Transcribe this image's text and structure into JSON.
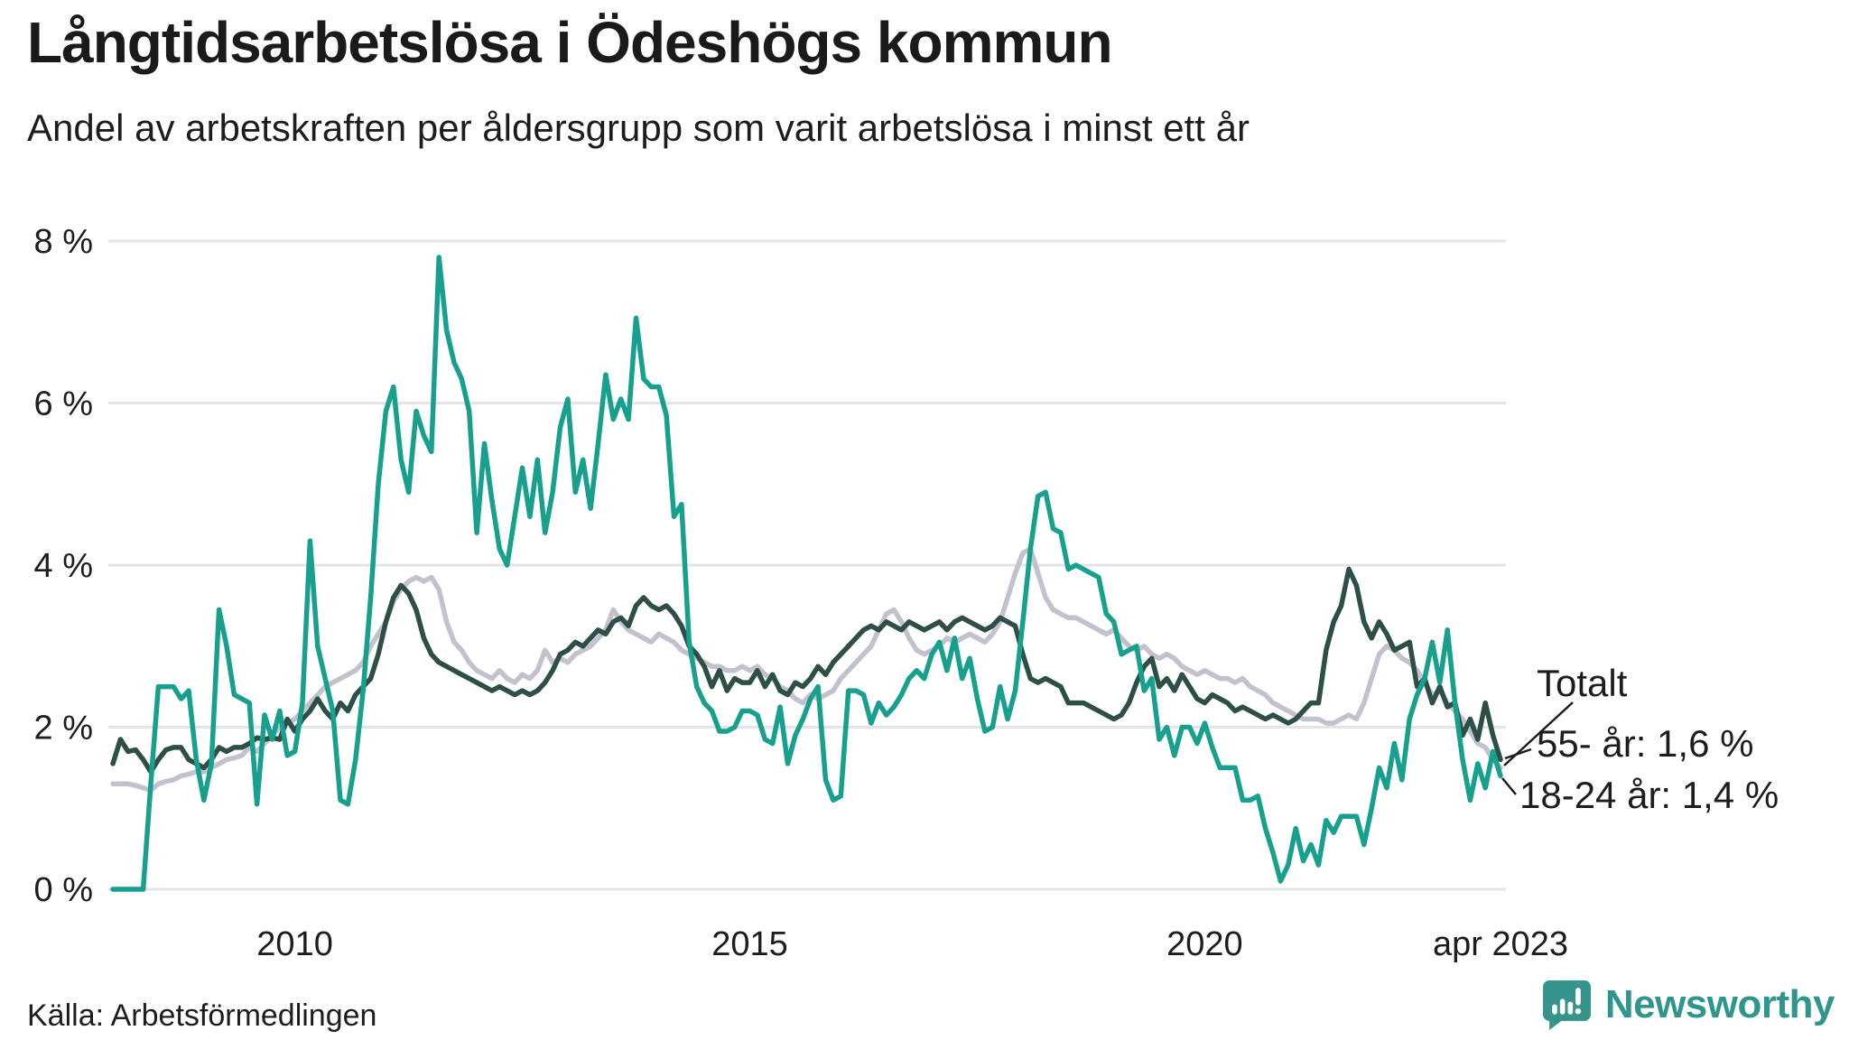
{
  "header": {
    "title": "Långtidsarbetslösa i Ödeshögs kommun",
    "subtitle": "Andel av arbetskraften per åldersgrupp som varit arbetslösa i minst ett år"
  },
  "footer": {
    "source": "Källa: Arbetsförmedlingen",
    "brand": "Newsworthy"
  },
  "colors": {
    "background": "#ffffff",
    "text": "#1d1d1d",
    "grid": "#e4e4e8",
    "brand_teal": "#2f968d",
    "series_total": "#c2c1cd",
    "series_55": "#2d4f47",
    "series_18_24": "#18a08e"
  },
  "chart_data": {
    "type": "line",
    "title": "Långtidsarbetslösa i Ödeshögs kommun",
    "subtitle": "Andel av arbetskraften per åldersgrupp som varit arbetslösa i minst ett år",
    "x_start": "2008-01",
    "x_end": "2023-04",
    "x_interval": "monthly",
    "ylim": [
      0,
      8
    ],
    "grid": true,
    "legend_position": "end-labels-right",
    "yticks": [
      {
        "value": 0,
        "label": "0 %"
      },
      {
        "value": 2,
        "label": "2 %"
      },
      {
        "value": 4,
        "label": "4 %"
      },
      {
        "value": 6,
        "label": "6 %"
      },
      {
        "value": 8,
        "label": "8 %"
      }
    ],
    "xticks": [
      {
        "label": "2010",
        "month_index": 24
      },
      {
        "label": "2015",
        "month_index": 84
      },
      {
        "label": "2020",
        "month_index": 144
      },
      {
        "label": "apr 2023",
        "month_index": 183
      }
    ],
    "series": [
      {
        "name": "Totalt",
        "end_label": "Totalt",
        "end_value": null,
        "color": "#c2c1cd",
        "values": [
          1.3,
          1.3,
          1.3,
          1.28,
          1.25,
          1.22,
          1.3,
          1.33,
          1.35,
          1.4,
          1.42,
          1.45,
          1.45,
          1.5,
          1.55,
          1.6,
          1.62,
          1.65,
          1.75,
          1.7,
          1.8,
          1.9,
          2.0,
          2.05,
          2.1,
          2.2,
          2.3,
          2.4,
          2.5,
          2.55,
          2.6,
          2.65,
          2.7,
          2.8,
          3.0,
          3.15,
          3.3,
          3.55,
          3.7,
          3.8,
          3.85,
          3.8,
          3.85,
          3.7,
          3.3,
          3.05,
          2.95,
          2.8,
          2.7,
          2.65,
          2.6,
          2.7,
          2.6,
          2.55,
          2.65,
          2.6,
          2.7,
          2.95,
          2.8,
          2.85,
          2.8,
          2.9,
          2.95,
          3.0,
          3.1,
          3.2,
          3.45,
          3.3,
          3.2,
          3.15,
          3.1,
          3.05,
          3.15,
          3.1,
          3.05,
          2.95,
          2.9,
          2.85,
          2.8,
          2.75,
          2.75,
          2.7,
          2.7,
          2.75,
          2.7,
          2.75,
          2.65,
          2.6,
          2.5,
          2.45,
          2.35,
          2.3,
          2.4,
          2.35,
          2.4,
          2.45,
          2.6,
          2.7,
          2.8,
          2.9,
          3.0,
          3.2,
          3.4,
          3.45,
          3.3,
          3.1,
          2.95,
          2.9,
          2.95,
          3.0,
          3.1,
          3.05,
          3.1,
          3.15,
          3.1,
          3.05,
          3.15,
          3.3,
          3.6,
          3.9,
          4.15,
          4.2,
          3.9,
          3.6,
          3.45,
          3.4,
          3.35,
          3.35,
          3.3,
          3.25,
          3.2,
          3.15,
          3.2,
          3.1,
          3.0,
          2.95,
          3.0,
          2.9,
          2.85,
          2.9,
          2.85,
          2.75,
          2.7,
          2.65,
          2.7,
          2.65,
          2.6,
          2.6,
          2.55,
          2.6,
          2.5,
          2.45,
          2.4,
          2.3,
          2.25,
          2.2,
          2.15,
          2.1,
          2.1,
          2.1,
          2.05,
          2.05,
          2.1,
          2.15,
          2.1,
          2.3,
          2.6,
          2.9,
          3.0,
          2.95,
          2.85,
          2.8,
          2.7,
          2.55,
          2.4,
          2.45,
          2.3,
          2.2,
          2.1,
          1.95,
          1.8,
          1.75,
          1.6,
          1.5
        ]
      },
      {
        "name": "55- år",
        "end_label": "55- år: 1,6 %",
        "end_value": 1.6,
        "color": "#2d4f47",
        "values": [
          1.55,
          1.85,
          1.7,
          1.72,
          1.6,
          1.45,
          1.6,
          1.72,
          1.75,
          1.75,
          1.6,
          1.55,
          1.5,
          1.6,
          1.75,
          1.7,
          1.75,
          1.75,
          1.8,
          1.87,
          1.85,
          1.87,
          1.85,
          2.1,
          1.95,
          2.1,
          2.2,
          2.35,
          2.2,
          2.1,
          2.3,
          2.2,
          2.4,
          2.5,
          2.6,
          2.9,
          3.3,
          3.6,
          3.75,
          3.65,
          3.45,
          3.1,
          2.9,
          2.8,
          2.75,
          2.7,
          2.65,
          2.6,
          2.55,
          2.5,
          2.45,
          2.5,
          2.45,
          2.4,
          2.45,
          2.4,
          2.45,
          2.55,
          2.7,
          2.9,
          2.95,
          3.05,
          3.0,
          3.1,
          3.2,
          3.15,
          3.3,
          3.35,
          3.25,
          3.5,
          3.6,
          3.5,
          3.45,
          3.5,
          3.4,
          3.25,
          3.0,
          2.9,
          2.75,
          2.5,
          2.7,
          2.45,
          2.6,
          2.55,
          2.55,
          2.7,
          2.5,
          2.65,
          2.45,
          2.4,
          2.55,
          2.5,
          2.6,
          2.75,
          2.65,
          2.8,
          2.9,
          3.0,
          3.1,
          3.2,
          3.25,
          3.2,
          3.3,
          3.25,
          3.2,
          3.3,
          3.25,
          3.2,
          3.25,
          3.3,
          3.2,
          3.3,
          3.35,
          3.3,
          3.25,
          3.2,
          3.25,
          3.35,
          3.3,
          3.25,
          2.9,
          2.6,
          2.55,
          2.6,
          2.55,
          2.5,
          2.3,
          2.3,
          2.3,
          2.25,
          2.2,
          2.15,
          2.1,
          2.15,
          2.3,
          2.55,
          2.75,
          2.85,
          2.5,
          2.6,
          2.45,
          2.65,
          2.5,
          2.35,
          2.3,
          2.4,
          2.35,
          2.3,
          2.2,
          2.25,
          2.2,
          2.15,
          2.1,
          2.15,
          2.1,
          2.05,
          2.1,
          2.2,
          2.3,
          2.3,
          2.95,
          3.3,
          3.5,
          3.95,
          3.75,
          3.3,
          3.1,
          3.3,
          3.15,
          2.95,
          3.0,
          3.05,
          2.5,
          2.6,
          2.3,
          2.5,
          2.25,
          2.3,
          1.9,
          2.1,
          1.85,
          2.3,
          1.9,
          1.6
        ]
      },
      {
        "name": "18-24 år",
        "end_label": "18-24 år: 1,4 %",
        "end_value": 1.4,
        "color": "#18a08e",
        "values": [
          0.0,
          0.0,
          0.0,
          0.0,
          0.0,
          1.3,
          2.5,
          2.5,
          2.5,
          2.35,
          2.45,
          1.6,
          1.1,
          1.55,
          3.45,
          3.0,
          2.4,
          2.35,
          2.3,
          1.05,
          2.15,
          1.85,
          2.2,
          1.65,
          1.7,
          2.3,
          4.3,
          3.0,
          2.6,
          2.2,
          1.1,
          1.05,
          1.6,
          2.45,
          3.6,
          5.0,
          5.9,
          6.2,
          5.3,
          4.9,
          5.9,
          5.6,
          5.4,
          7.8,
          6.9,
          6.5,
          6.3,
          5.9,
          4.4,
          5.5,
          4.8,
          4.2,
          4.0,
          4.6,
          5.2,
          4.6,
          5.3,
          4.4,
          4.9,
          5.7,
          6.05,
          4.9,
          5.3,
          4.7,
          5.5,
          6.35,
          5.8,
          6.05,
          5.8,
          7.05,
          6.3,
          6.2,
          6.2,
          5.85,
          4.6,
          4.75,
          3.05,
          2.5,
          2.3,
          2.2,
          1.95,
          1.95,
          2.0,
          2.2,
          2.2,
          2.15,
          1.85,
          1.8,
          2.25,
          1.55,
          1.9,
          2.1,
          2.35,
          2.5,
          1.35,
          1.1,
          1.15,
          2.45,
          2.45,
          2.4,
          2.05,
          2.3,
          2.15,
          2.25,
          2.4,
          2.6,
          2.7,
          2.6,
          2.9,
          3.05,
          2.7,
          3.1,
          2.6,
          2.85,
          2.35,
          1.95,
          2.0,
          2.5,
          2.1,
          2.45,
          3.3,
          4.2,
          4.85,
          4.9,
          4.45,
          4.4,
          3.95,
          4.0,
          3.95,
          3.9,
          3.85,
          3.4,
          3.3,
          2.9,
          2.95,
          3.0,
          2.45,
          2.6,
          1.85,
          2.0,
          1.65,
          2.0,
          2.0,
          1.8,
          2.05,
          1.75,
          1.5,
          1.5,
          1.5,
          1.1,
          1.1,
          1.15,
          0.75,
          0.45,
          0.1,
          0.3,
          0.75,
          0.35,
          0.55,
          0.3,
          0.85,
          0.7,
          0.9,
          0.9,
          0.9,
          0.55,
          1.0,
          1.5,
          1.25,
          1.8,
          1.35,
          2.1,
          2.4,
          2.6,
          3.05,
          2.55,
          3.2,
          2.3,
          1.6,
          1.1,
          1.55,
          1.25,
          1.7,
          1.4
        ]
      }
    ]
  }
}
